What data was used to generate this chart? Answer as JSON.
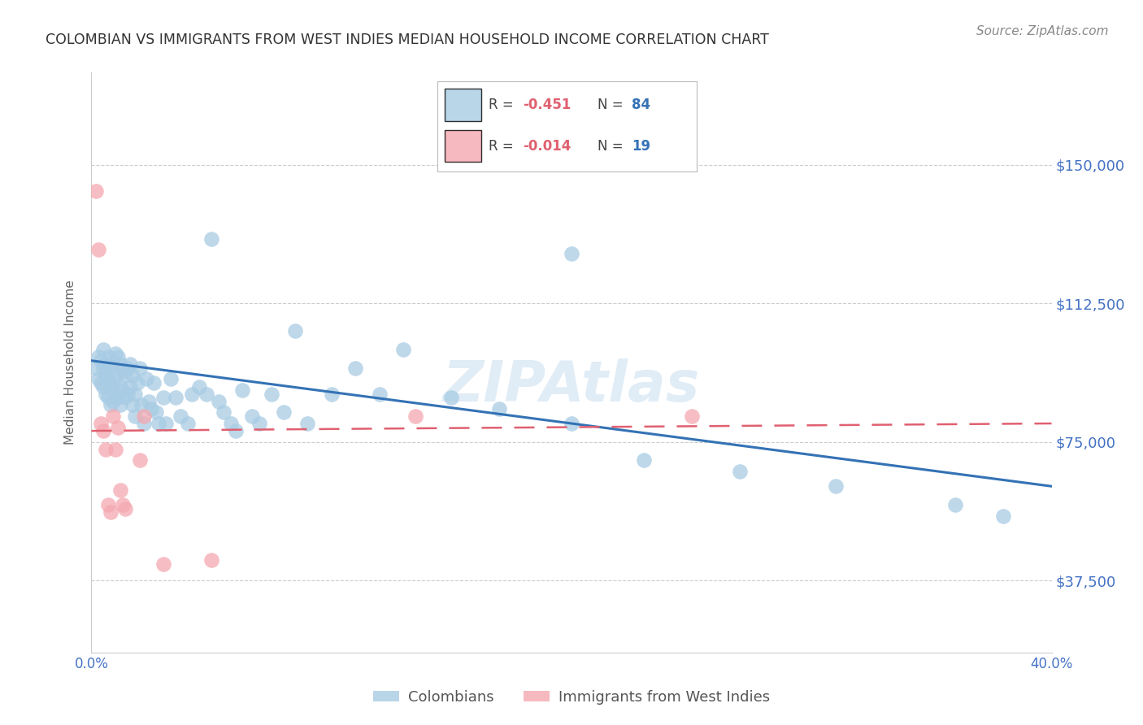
{
  "title": "COLOMBIAN VS IMMIGRANTS FROM WEST INDIES MEDIAN HOUSEHOLD INCOME CORRELATION CHART",
  "source": "Source: ZipAtlas.com",
  "ylabel": "Median Household Income",
  "xlim": [
    0.0,
    0.4
  ],
  "ylim": [
    18000,
    175000
  ],
  "ytick_vals": [
    37500,
    75000,
    112500,
    150000
  ],
  "ytick_labels": [
    "$37,500",
    "$75,000",
    "$112,500",
    "$150,000"
  ],
  "xtick_vals": [
    0.0,
    0.05,
    0.1,
    0.15,
    0.2,
    0.25,
    0.3,
    0.35,
    0.4
  ],
  "xtick_labels": [
    "0.0%",
    "",
    "",
    "",
    "",
    "",
    "",
    "",
    "40.0%"
  ],
  "legend_blue_R": "-0.451",
  "legend_blue_N": "84",
  "legend_pink_R": "-0.014",
  "legend_pink_N": "19",
  "blue_color": "#a8cce4",
  "pink_color": "#f4a8b0",
  "blue_line_color": "#3472b5",
  "pink_line_color": "#e06070",
  "tick_label_color": "#4472c4",
  "title_color": "#333333",
  "source_color": "#888888",
  "grid_color": "#cccccc",
  "watermark_text": "ZIPAtlas",
  "colombians_x": [
    0.002,
    0.003,
    0.003,
    0.004,
    0.004,
    0.005,
    0.005,
    0.005,
    0.006,
    0.006,
    0.006,
    0.007,
    0.007,
    0.007,
    0.008,
    0.008,
    0.008,
    0.009,
    0.009,
    0.009,
    0.01,
    0.01,
    0.01,
    0.011,
    0.011,
    0.012,
    0.012,
    0.012,
    0.013,
    0.013,
    0.014,
    0.014,
    0.015,
    0.015,
    0.016,
    0.016,
    0.017,
    0.017,
    0.018,
    0.018,
    0.019,
    0.02,
    0.021,
    0.022,
    0.023,
    0.024,
    0.025,
    0.026,
    0.027,
    0.028,
    0.03,
    0.031,
    0.033,
    0.035,
    0.037,
    0.04,
    0.042,
    0.045,
    0.048,
    0.05,
    0.053,
    0.055,
    0.058,
    0.06,
    0.063,
    0.067,
    0.07,
    0.075,
    0.08,
    0.085,
    0.09,
    0.1,
    0.11,
    0.12,
    0.13,
    0.15,
    0.17,
    0.2,
    0.23,
    0.27,
    0.31,
    0.36,
    0.38,
    0.2
  ],
  "colombians_y": [
    95000,
    98000,
    92000,
    97000,
    91000,
    100000,
    95000,
    90000,
    96000,
    93000,
    88000,
    98000,
    92000,
    87000,
    96000,
    90000,
    85000,
    95000,
    91000,
    86000,
    99000,
    93000,
    88000,
    98000,
    87000,
    96000,
    90000,
    85000,
    94000,
    89000,
    93000,
    87000,
    95000,
    88000,
    96000,
    90000,
    85000,
    93000,
    88000,
    82000,
    91000,
    95000,
    85000,
    80000,
    92000,
    86000,
    84000,
    91000,
    83000,
    80000,
    87000,
    80000,
    92000,
    87000,
    82000,
    80000,
    88000,
    90000,
    88000,
    130000,
    86000,
    83000,
    80000,
    78000,
    89000,
    82000,
    80000,
    88000,
    83000,
    105000,
    80000,
    88000,
    95000,
    88000,
    100000,
    87000,
    84000,
    80000,
    70000,
    67000,
    63000,
    58000,
    55000,
    126000
  ],
  "westindies_x": [
    0.002,
    0.003,
    0.004,
    0.005,
    0.006,
    0.007,
    0.008,
    0.009,
    0.01,
    0.011,
    0.012,
    0.013,
    0.014,
    0.022,
    0.03,
    0.05,
    0.135,
    0.25,
    0.02
  ],
  "westindies_y": [
    143000,
    127000,
    80000,
    78000,
    73000,
    58000,
    56000,
    82000,
    73000,
    79000,
    62000,
    58000,
    57000,
    82000,
    42000,
    43000,
    82000,
    82000,
    70000
  ]
}
